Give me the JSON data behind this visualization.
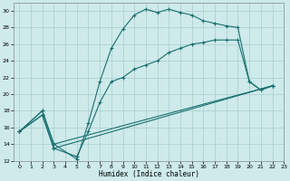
{
  "xlabel": "Humidex (Indice chaleur)",
  "bg_color": "#ceeaea",
  "grid_color": "#aacccc",
  "line_color": "#1a7070",
  "xlim": [
    -0.5,
    23
  ],
  "ylim": [
    12,
    31
  ],
  "xticks": [
    0,
    1,
    2,
    3,
    4,
    5,
    6,
    7,
    8,
    9,
    10,
    11,
    12,
    13,
    14,
    15,
    16,
    17,
    18,
    19,
    20,
    21,
    22,
    23
  ],
  "yticks": [
    12,
    14,
    16,
    18,
    20,
    22,
    24,
    26,
    28,
    30
  ],
  "series1_x": [
    0,
    2,
    3,
    5,
    6,
    7,
    8,
    9,
    10,
    11,
    12,
    13,
    14,
    15,
    16,
    17,
    18,
    19,
    20,
    21,
    22
  ],
  "series1_y": [
    15.5,
    18.0,
    14.0,
    12.2,
    16.5,
    21.5,
    25.5,
    27.8,
    29.5,
    30.2,
    29.8,
    30.2,
    29.8,
    29.5,
    28.8,
    28.5,
    28.2,
    28.0,
    21.5,
    20.5,
    21.0
  ],
  "series2_x": [
    0,
    2,
    3,
    5,
    6,
    7,
    8,
    9,
    10,
    11,
    12,
    13,
    14,
    15,
    16,
    17,
    18,
    19,
    20,
    21,
    22
  ],
  "series2_y": [
    15.5,
    17.5,
    13.5,
    12.5,
    15.5,
    19.0,
    21.5,
    22.0,
    23.0,
    23.5,
    24.0,
    25.0,
    25.5,
    26.0,
    26.2,
    26.5,
    26.5,
    26.5,
    21.5,
    20.5,
    21.0
  ],
  "series3_x": [
    0,
    2,
    3,
    22
  ],
  "series3_y": [
    15.5,
    17.5,
    13.5,
    21.0
  ],
  "series4_x": [
    0,
    2,
    3,
    22
  ],
  "series4_y": [
    15.5,
    18.0,
    14.0,
    21.0
  ]
}
